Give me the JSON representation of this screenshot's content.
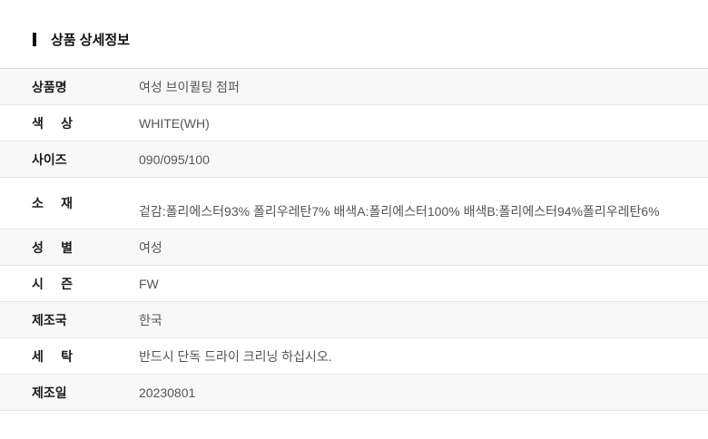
{
  "section": {
    "title": "상품 상세정보"
  },
  "table": {
    "rows": [
      {
        "label": "상품명",
        "value": "여성 브이퀼팅 점퍼"
      },
      {
        "label": "색 상",
        "value": "WHITE(WH)"
      },
      {
        "label": "사이즈",
        "value": "090/095/100"
      },
      {
        "label": "소 재",
        "value": "겉감:폴리에스터93% 폴리우레탄7% 배색A:폴리에스터100% 배색B:폴리에스터94%폴리우레탄6%"
      },
      {
        "label": "성 별",
        "value": "여성"
      },
      {
        "label": "시 즌",
        "value": "FW"
      },
      {
        "label": "제조국",
        "value": "한국"
      },
      {
        "label": "세 탁",
        "value": "반드시 단독 드라이 크리닝 하십시오."
      },
      {
        "label": "제조일",
        "value": "20230801"
      }
    ]
  },
  "colors": {
    "accent_bar": "#111111",
    "title_text": "#111111",
    "label_text": "#1b1b1b",
    "value_text": "#555555",
    "row_stripe": "#f8f8f8",
    "row_plain": "#ffffff",
    "border": "#e7e7e7"
  }
}
